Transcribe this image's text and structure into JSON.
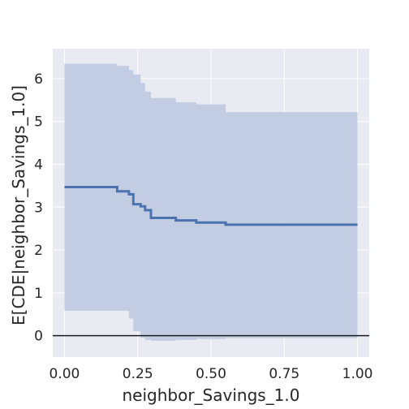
{
  "chart_data": {
    "type": "line",
    "xlabel": "neighbor_Savings_1.0",
    "ylabel": "E[CDE|neighbor_Savings_1.0]",
    "xlim": [
      -0.04,
      1.04
    ],
    "ylim": [
      -0.5,
      6.7
    ],
    "xticks": [
      0.0,
      0.25,
      0.5,
      0.75,
      1.0
    ],
    "xtick_labels": [
      "0.00",
      "0.25",
      "0.50",
      "0.75",
      "1.00"
    ],
    "yticks": [
      0,
      1,
      2,
      3,
      4,
      5,
      6
    ],
    "ytick_labels": [
      "0",
      "1",
      "2",
      "3",
      "4",
      "5",
      "6"
    ],
    "grid": true,
    "reference_line_y": 0,
    "colors": {
      "background": "#eaeaf2",
      "grid": "#ffffff",
      "line": "#4c72b0",
      "band": "#c0cae2",
      "reference": "#1a1a1a"
    },
    "series": [
      {
        "x": [
          0.0,
          0.18,
          0.18,
          0.22,
          0.22,
          0.235,
          0.235,
          0.26,
          0.26,
          0.275,
          0.275,
          0.295,
          0.295,
          0.38,
          0.38,
          0.45,
          0.45,
          0.55,
          0.55,
          1.0
        ],
        "y": [
          3.47,
          3.47,
          3.37,
          3.37,
          3.3,
          3.3,
          3.07,
          3.07,
          3.02,
          3.02,
          2.93,
          2.93,
          2.75,
          2.75,
          2.69,
          2.69,
          2.64,
          2.64,
          2.59,
          2.59
        ],
        "lower": [
          0.58,
          0.58,
          0.58,
          0.58,
          0.4,
          0.4,
          0.1,
          0.1,
          -0.05,
          -0.05,
          -0.1,
          -0.1,
          -0.12,
          -0.12,
          -0.1,
          -0.1,
          -0.08,
          -0.08,
          -0.06,
          -0.06
        ],
        "upper": [
          6.35,
          6.35,
          6.3,
          6.3,
          6.2,
          6.2,
          6.1,
          6.1,
          5.9,
          5.9,
          5.7,
          5.7,
          5.55,
          5.55,
          5.45,
          5.45,
          5.4,
          5.4,
          5.22,
          5.22
        ]
      }
    ]
  }
}
